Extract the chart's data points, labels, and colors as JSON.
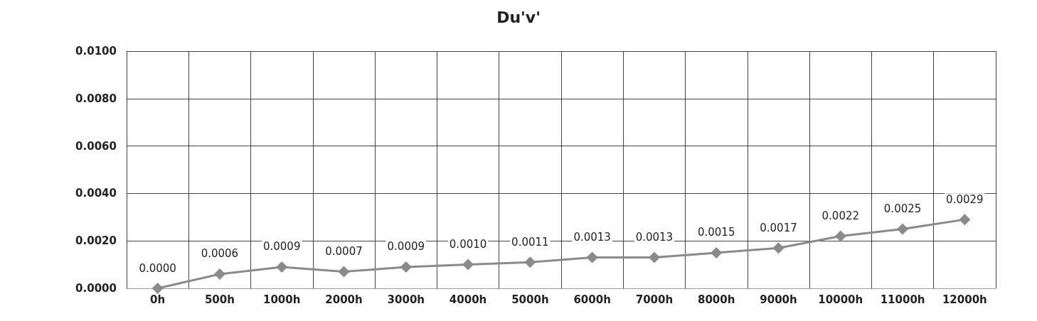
{
  "chart_data": {
    "type": "line",
    "title": "Du'v'",
    "categories": [
      "0h",
      "500h",
      "1000h",
      "2000h",
      "3000h",
      "4000h",
      "5000h",
      "6000h",
      "7000h",
      "8000h",
      "9000h",
      "10000h",
      "11000h",
      "12000h"
    ],
    "series": [
      {
        "color": "#8a8a8a",
        "values": [
          0.0,
          0.0006,
          0.0009,
          0.0007,
          0.0009,
          0.001,
          0.0011,
          0.0013,
          0.0013,
          0.0015,
          0.0017,
          0.0022,
          0.0025,
          0.0029
        ],
        "value_labels": [
          "0.0000",
          "0.0006",
          "0.0009",
          "0.0007",
          "0.0009",
          "0.0010",
          "0.0011",
          "0.0013",
          "0.0013",
          "0.0015",
          "0.0017",
          "0.0022",
          "0.0025",
          "0.0029"
        ]
      }
    ],
    "ylim": [
      0,
      0.01
    ],
    "yticks": [
      {
        "value": 0,
        "label": "0.0000"
      },
      {
        "value": 0.002,
        "label": "0.0020"
      },
      {
        "value": 0.004,
        "label": "0.0040"
      },
      {
        "value": 0.006,
        "label": "0.0060"
      },
      {
        "value": 0.008,
        "label": "0.0080"
      },
      {
        "value": 0.01,
        "label": "0.0100"
      }
    ],
    "grid": true,
    "marker": "diamond",
    "line_style": "solid"
  }
}
